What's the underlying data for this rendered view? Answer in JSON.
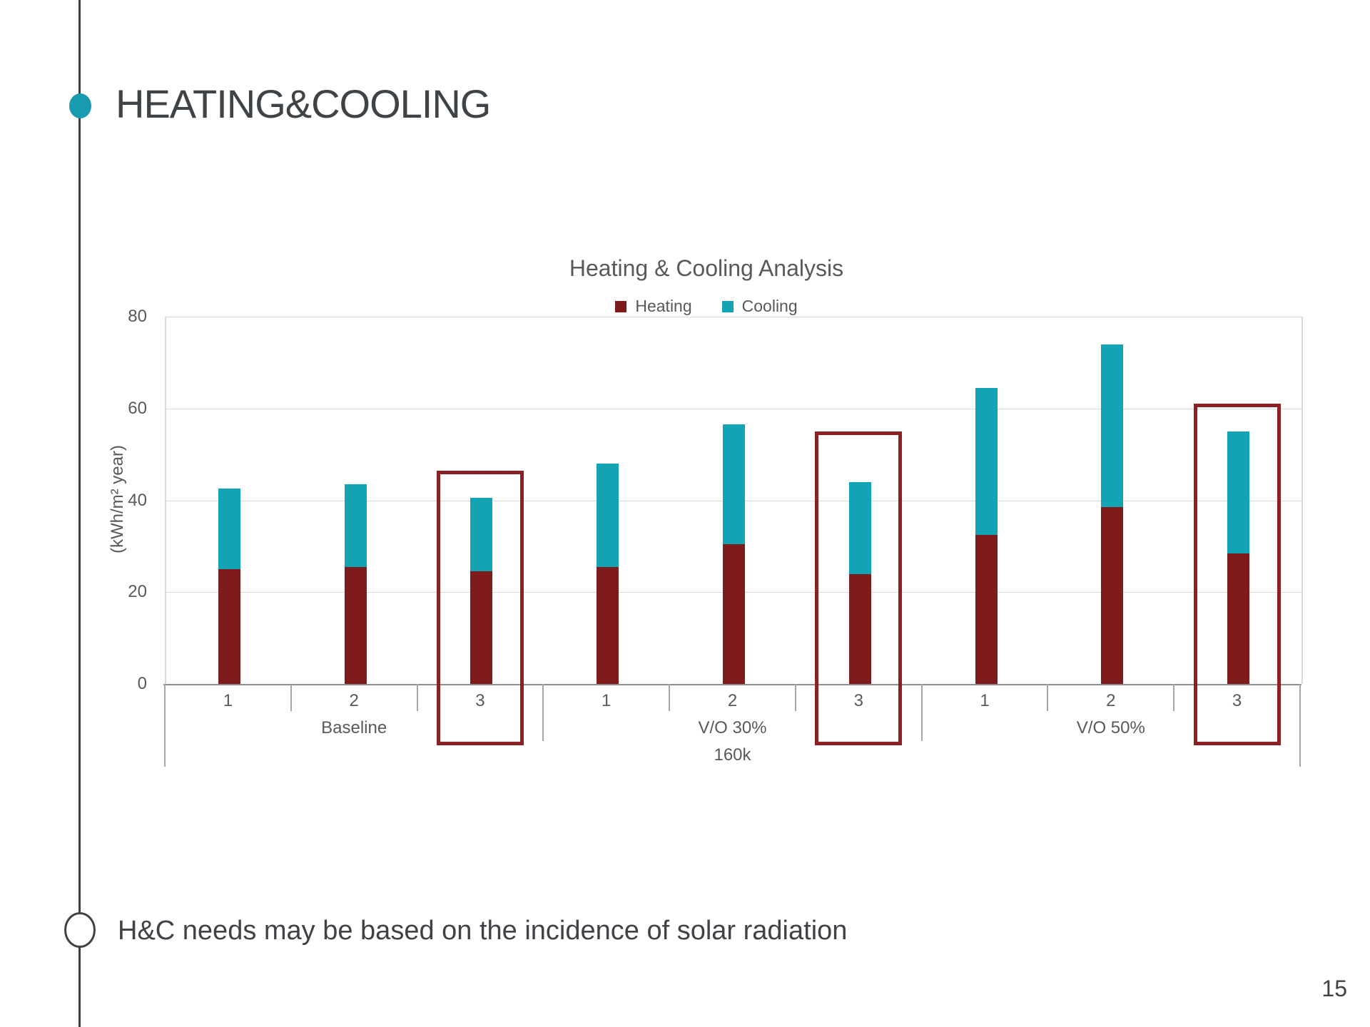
{
  "slide": {
    "title": "HEATING&COOLING",
    "bullet_text": "H&C needs may be based on the incidence of solar radiation",
    "page_number": "15",
    "accent_teal": "#189bae",
    "line_color": "#3c4043"
  },
  "chart_data": {
    "type": "bar",
    "stacked": true,
    "title": "Heating & Cooling Analysis",
    "ylabel": "(kWh/m² year)",
    "ylim": [
      0,
      80
    ],
    "yticks": [
      0,
      20,
      40,
      60,
      80
    ],
    "grid": true,
    "legend_position": "top",
    "categories": [
      "1",
      "2",
      "3",
      "1",
      "2",
      "3",
      "1",
      "2",
      "3"
    ],
    "groups": [
      {
        "label": "Baseline",
        "sublabel": "",
        "start": 0,
        "count": 3
      },
      {
        "label": "V/O 30%",
        "sublabel": "160k",
        "start": 3,
        "count": 3
      },
      {
        "label": "V/O 50%",
        "sublabel": "",
        "start": 6,
        "count": 3
      }
    ],
    "series": [
      {
        "name": "Heating",
        "color": "#801b1b",
        "values": [
          25,
          25.5,
          24.5,
          25.5,
          30.5,
          24,
          32.5,
          38.5,
          28.5
        ]
      },
      {
        "name": "Cooling",
        "color": "#12a3b4",
        "values": [
          17.5,
          18,
          16,
          22.5,
          26,
          20,
          32,
          35.5,
          26.5
        ]
      }
    ],
    "totals": [
      42.5,
      43.5,
      40.5,
      48,
      56.5,
      44,
      64.5,
      74,
      55
    ],
    "highlight_boxes": [
      {
        "category_index": 2,
        "top_value": 46.5,
        "color": "#8b2125"
      },
      {
        "category_index": 5,
        "top_value": 55,
        "color": "#8b2125"
      },
      {
        "category_index": 8,
        "top_value": 61,
        "color": "#8b2125"
      }
    ],
    "grid_color": "#d9d9d9",
    "axis_color": "#8c8c8c",
    "text_color": "#595959"
  }
}
